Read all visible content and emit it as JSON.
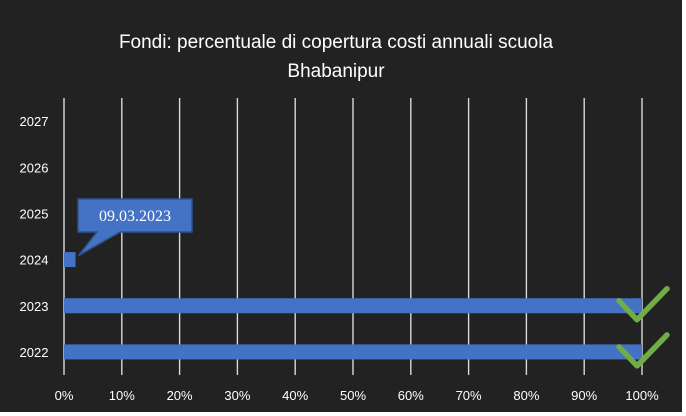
{
  "chart_data": {
    "type": "bar",
    "orientation": "horizontal",
    "title": [
      "Fondi: percentuale di copertura costi annuali scuola",
      "Bhabanipur"
    ],
    "xlabel": "",
    "ylabel": "",
    "categories": [
      "2022",
      "2023",
      "2024",
      "2025",
      "2026",
      "2027"
    ],
    "values": [
      1.0,
      1.0,
      0.02,
      0,
      0,
      0
    ],
    "x_ticks": [
      "0%",
      "10%",
      "20%",
      "30%",
      "40%",
      "50%",
      "60%",
      "70%",
      "80%",
      "90%",
      "100%"
    ],
    "xlim": [
      0,
      1
    ],
    "grid": "vertical",
    "callout": {
      "category": "2024",
      "text": "09.03.2023"
    },
    "completed_marks": [
      "2022",
      "2023"
    ],
    "colors": {
      "background": "#222222",
      "bar": "#4472c4",
      "grid": "#d9d9d9",
      "text": "#ffffff",
      "check": "#70ad47",
      "callout_border": "#2f528f"
    }
  }
}
